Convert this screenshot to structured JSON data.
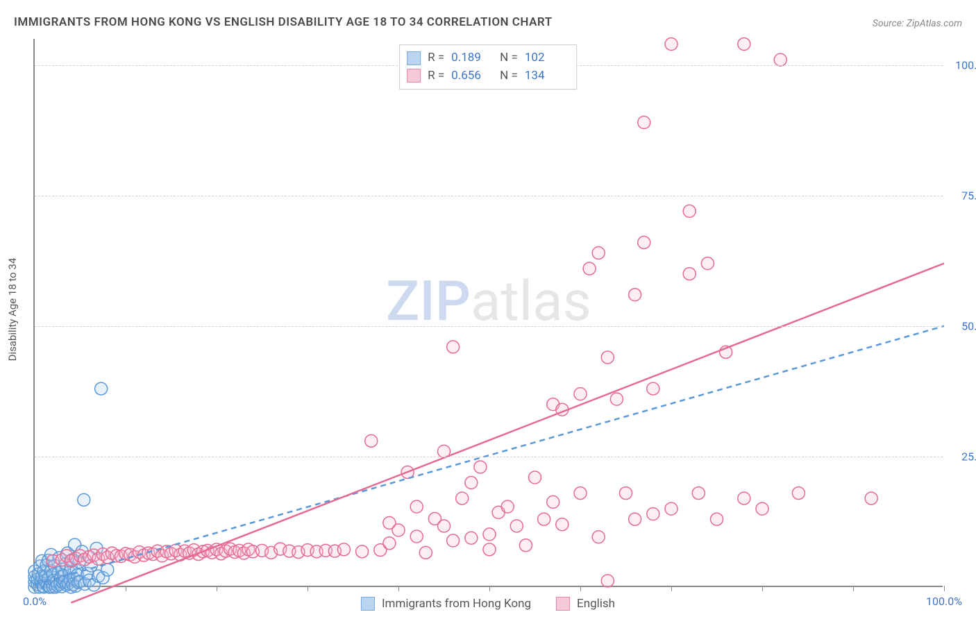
{
  "title": "IMMIGRANTS FROM HONG KONG VS ENGLISH DISABILITY AGE 18 TO 34 CORRELATION CHART",
  "source_prefix": "Source: ",
  "source_name": "ZipAtlas.com",
  "y_axis_label": "Disability Age 18 to 34",
  "watermark": {
    "part1": "ZIP",
    "part2": "atlas"
  },
  "chart": {
    "type": "scatter",
    "background_color": "#ffffff",
    "grid_color": "#d0d0d0",
    "axis_color": "#888888",
    "tick_label_color": "#3b74c6",
    "xlim": [
      0,
      100
    ],
    "ylim": [
      0,
      105
    ],
    "x_ticks": [
      0,
      10,
      20,
      30,
      40,
      50,
      60,
      70,
      80,
      90,
      100
    ],
    "x_tick_labels": {
      "0": "0.0%",
      "100": "100.0%"
    },
    "y_gridlines": [
      25,
      50,
      75,
      100
    ],
    "y_tick_labels": {
      "25": "25.0%",
      "50": "50.0%",
      "75": "75.0%",
      "100": "100.0%"
    },
    "marker_radius": 9,
    "marker_stroke_width": 1.5,
    "marker_fill_opacity": 0.25,
    "trend_line_width": 2.5,
    "series": [
      {
        "name": "Immigrants from Hong Kong",
        "color_stroke": "#5a98d8",
        "color_fill": "#a9cbec",
        "R": "0.189",
        "N": "102",
        "trend": {
          "x1": 0,
          "y1": 0.5,
          "x2": 100,
          "y2": 50,
          "dashed": true
        },
        "points": [
          [
            0,
            0
          ],
          [
            0,
            1
          ],
          [
            0,
            2
          ],
          [
            0,
            3
          ],
          [
            0.3,
            0.5
          ],
          [
            0.3,
            1.5
          ],
          [
            0.4,
            2.5
          ],
          [
            0.5,
            0
          ],
          [
            0.6,
            4
          ],
          [
            0.7,
            1
          ],
          [
            0.8,
            2
          ],
          [
            0.8,
            5
          ],
          [
            0.9,
            0.2
          ],
          [
            1,
            3
          ],
          [
            1,
            0
          ],
          [
            1.1,
            1.2
          ],
          [
            1.2,
            2.1
          ],
          [
            1.3,
            4.2
          ],
          [
            1.4,
            0.4
          ],
          [
            1.5,
            5.1
          ],
          [
            1.5,
            1.7
          ],
          [
            1.6,
            0
          ],
          [
            1.7,
            0
          ],
          [
            1.8,
            3.1
          ],
          [
            1.8,
            6.2
          ],
          [
            1.9,
            0.8
          ],
          [
            2,
            2.4
          ],
          [
            2,
            0
          ],
          [
            2.1,
            1.3
          ],
          [
            2.2,
            4.1
          ],
          [
            2.3,
            0
          ],
          [
            2.4,
            1
          ],
          [
            2.5,
            0.3
          ],
          [
            2.6,
            2.7
          ],
          [
            2.7,
            5.6
          ],
          [
            2.8,
            0.6
          ],
          [
            2.9,
            1.9
          ],
          [
            3,
            3.4
          ],
          [
            3,
            0.1
          ],
          [
            3.1,
            0.9
          ],
          [
            3.2,
            2.2
          ],
          [
            3.3,
            1.1
          ],
          [
            3.4,
            4.4
          ],
          [
            3.5,
            0.4
          ],
          [
            3.6,
            6.5
          ],
          [
            3.7,
            0.7
          ],
          [
            3.8,
            2.8
          ],
          [
            3.9,
            1.4
          ],
          [
            4,
            0
          ],
          [
            4,
            3.7
          ],
          [
            4.1,
            5.2
          ],
          [
            4.2,
            0.5
          ],
          [
            4.3,
            1.6
          ],
          [
            4.4,
            8.1
          ],
          [
            4.5,
            0.2
          ],
          [
            4.6,
            3.2
          ],
          [
            4.7,
            2.3
          ],
          [
            4.8,
            0.9
          ],
          [
            4.9,
            4.8
          ],
          [
            5,
            1.1
          ],
          [
            5.2,
            6.8
          ],
          [
            5.4,
            16.7
          ],
          [
            5.5,
            0.6
          ],
          [
            5.8,
            2.6
          ],
          [
            6,
            1.3
          ],
          [
            6.2,
            4.1
          ],
          [
            6.5,
            0.4
          ],
          [
            6.8,
            7.4
          ],
          [
            7,
            2.1
          ],
          [
            7.3,
            38
          ],
          [
            7.5,
            1.8
          ],
          [
            8,
            3.3
          ]
        ]
      },
      {
        "name": "English",
        "color_stroke": "#e66992",
        "color_fill": "#f5bccf",
        "R": "0.656",
        "N": "134",
        "trend": {
          "x1": 4,
          "y1": -3,
          "x2": 100,
          "y2": 62,
          "dashed": false
        },
        "points": [
          [
            2,
            5
          ],
          [
            3,
            5.2
          ],
          [
            3.5,
            6
          ],
          [
            4,
            5
          ],
          [
            4.5,
            5.5
          ],
          [
            5,
            6
          ],
          [
            5.5,
            5.3
          ],
          [
            6,
            5.8
          ],
          [
            6.5,
            6.1
          ],
          [
            7,
            5.4
          ],
          [
            7.5,
            6.3
          ],
          [
            8,
            5.7
          ],
          [
            8.5,
            6.5
          ],
          [
            9,
            6
          ],
          [
            9.5,
            5.9
          ],
          [
            10,
            6.4
          ],
          [
            10.5,
            6.2
          ],
          [
            11,
            5.8
          ],
          [
            11.5,
            6.7
          ],
          [
            12,
            6.1
          ],
          [
            12.5,
            6.5
          ],
          [
            13,
            6.3
          ],
          [
            13.5,
            6.9
          ],
          [
            14,
            6
          ],
          [
            14.5,
            6.8
          ],
          [
            15,
            6.4
          ],
          [
            15.5,
            7
          ],
          [
            16,
            6.2
          ],
          [
            16.5,
            6.9
          ],
          [
            17,
            6.5
          ],
          [
            17.5,
            7.1
          ],
          [
            18,
            6.3
          ],
          [
            18.5,
            6.8
          ],
          [
            19,
            7
          ],
          [
            19.5,
            6.6
          ],
          [
            20,
            7.2
          ],
          [
            20.5,
            6.4
          ],
          [
            21,
            6.9
          ],
          [
            21.5,
            7.3
          ],
          [
            22,
            6.7
          ],
          [
            22.5,
            7
          ],
          [
            23,
            6.5
          ],
          [
            23.5,
            7.2
          ],
          [
            24,
            6.8
          ],
          [
            25,
            7
          ],
          [
            26,
            6.6
          ],
          [
            27,
            7.3
          ],
          [
            28,
            6.9
          ],
          [
            29,
            6.7
          ],
          [
            30,
            7.1
          ],
          [
            31,
            6.8
          ],
          [
            32,
            7
          ],
          [
            33,
            6.9
          ],
          [
            34,
            7.2
          ],
          [
            36,
            6.8
          ],
          [
            37,
            28
          ],
          [
            38,
            7.1
          ],
          [
            39,
            8.4
          ],
          [
            39,
            12.3
          ],
          [
            40,
            10.9
          ],
          [
            41,
            22
          ],
          [
            42,
            9.7
          ],
          [
            42,
            15.4
          ],
          [
            43,
            6.6
          ],
          [
            44,
            13.1
          ],
          [
            45,
            11.7
          ],
          [
            45,
            26
          ],
          [
            46,
            46
          ],
          [
            46,
            8.9
          ],
          [
            47,
            17
          ],
          [
            48,
            9.4
          ],
          [
            48,
            20
          ],
          [
            49,
            23
          ],
          [
            50,
            7.2
          ],
          [
            50,
            10.1
          ],
          [
            51,
            14.3
          ],
          [
            52,
            15.4
          ],
          [
            53,
            11.7
          ],
          [
            54,
            8
          ],
          [
            55,
            21
          ],
          [
            56,
            13
          ],
          [
            57,
            16.3
          ],
          [
            57,
            35
          ],
          [
            58,
            34
          ],
          [
            58,
            12
          ],
          [
            60,
            37
          ],
          [
            60,
            18
          ],
          [
            61,
            61
          ],
          [
            62,
            9.6
          ],
          [
            62,
            64
          ],
          [
            63,
            1.2
          ],
          [
            63,
            44
          ],
          [
            64,
            36
          ],
          [
            65,
            18
          ],
          [
            66,
            56
          ],
          [
            66,
            13
          ],
          [
            67,
            66
          ],
          [
            67,
            89
          ],
          [
            68,
            14
          ],
          [
            68,
            38
          ],
          [
            70,
            104
          ],
          [
            70,
            15
          ],
          [
            72,
            60
          ],
          [
            72,
            72
          ],
          [
            73,
            18
          ],
          [
            74,
            62
          ],
          [
            75,
            13
          ],
          [
            76,
            45
          ],
          [
            78,
            17
          ],
          [
            78,
            104
          ],
          [
            80,
            15
          ],
          [
            82,
            101
          ],
          [
            84,
            18
          ],
          [
            92,
            17
          ]
        ]
      }
    ]
  },
  "legend_top": {
    "R_label": "R =",
    "N_label": "N ="
  },
  "legend_bottom": [
    {
      "series_index": 0
    },
    {
      "series_index": 1
    }
  ]
}
